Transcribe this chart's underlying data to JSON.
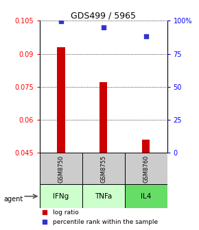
{
  "title": "GDS499 / 5965",
  "samples": [
    "GSM8750",
    "GSM8755",
    "GSM8760"
  ],
  "agents": [
    "IFNg",
    "TNFa",
    "IL4"
  ],
  "log_ratio": [
    0.093,
    0.077,
    0.051
  ],
  "percentile": [
    99.5,
    95.0,
    88.0
  ],
  "ylim_left": [
    0.045,
    0.105
  ],
  "ylim_right": [
    0,
    100
  ],
  "yticks_left": [
    0.045,
    0.06,
    0.075,
    0.09,
    0.105
  ],
  "yticks_right": [
    0,
    25,
    50,
    75,
    100
  ],
  "ytick_labels_left": [
    "0.045",
    "0.06",
    "0.075",
    "0.09",
    "0.105"
  ],
  "ytick_labels_right": [
    "0",
    "25",
    "50",
    "75",
    "100%"
  ],
  "bar_color": "#cc0000",
  "square_color": "#3333cc",
  "bar_width": 0.18,
  "agent_colors": [
    "#aaffaa",
    "#aaffaa",
    "#55ee55"
  ],
  "gsm_bg": "#cccccc",
  "legend_labels": [
    "log ratio",
    "percentile rank within the sample"
  ],
  "legend_colors": [
    "#cc0000",
    "#3333cc"
  ]
}
